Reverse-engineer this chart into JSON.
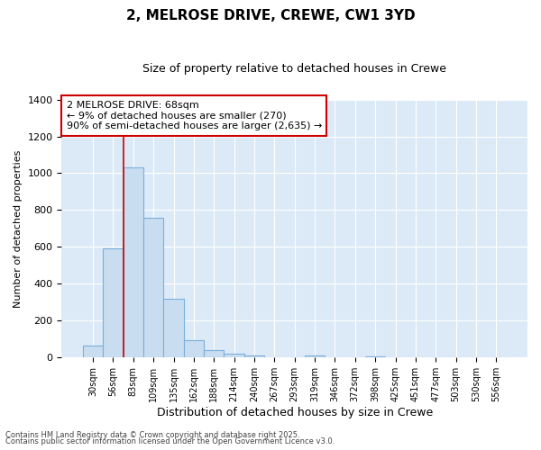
{
  "title": "2, MELROSE DRIVE, CREWE, CW1 3YD",
  "subtitle": "Size of property relative to detached houses in Crewe",
  "xlabel": "Distribution of detached houses by size in Crewe",
  "ylabel": "Number of detached properties",
  "bar_labels": [
    "30sqm",
    "56sqm",
    "83sqm",
    "109sqm",
    "135sqm",
    "162sqm",
    "188sqm",
    "214sqm",
    "240sqm",
    "267sqm",
    "293sqm",
    "319sqm",
    "346sqm",
    "372sqm",
    "398sqm",
    "425sqm",
    "451sqm",
    "477sqm",
    "503sqm",
    "530sqm",
    "556sqm"
  ],
  "bar_values": [
    65,
    590,
    1030,
    760,
    320,
    95,
    40,
    20,
    10,
    0,
    0,
    10,
    0,
    0,
    5,
    0,
    0,
    0,
    0,
    0,
    0
  ],
  "bar_color": "#c9ddf0",
  "bar_edgecolor": "#7aafdb",
  "figure_background": "#ffffff",
  "axes_background": "#dce9f7",
  "grid_color": "#ffffff",
  "red_line_x": 1.5,
  "annotation_text": "2 MELROSE DRIVE: 68sqm\n← 9% of detached houses are smaller (270)\n90% of semi-detached houses are larger (2,635) →",
  "annotation_box_color": "#ffffff",
  "annotation_box_edgecolor": "#cc0000",
  "footnote1": "Contains HM Land Registry data © Crown copyright and database right 2025.",
  "footnote2": "Contains public sector information licensed under the Open Government Licence v3.0.",
  "ylim": [
    0,
    1400
  ],
  "yticks": [
    0,
    200,
    400,
    600,
    800,
    1000,
    1200,
    1400
  ]
}
